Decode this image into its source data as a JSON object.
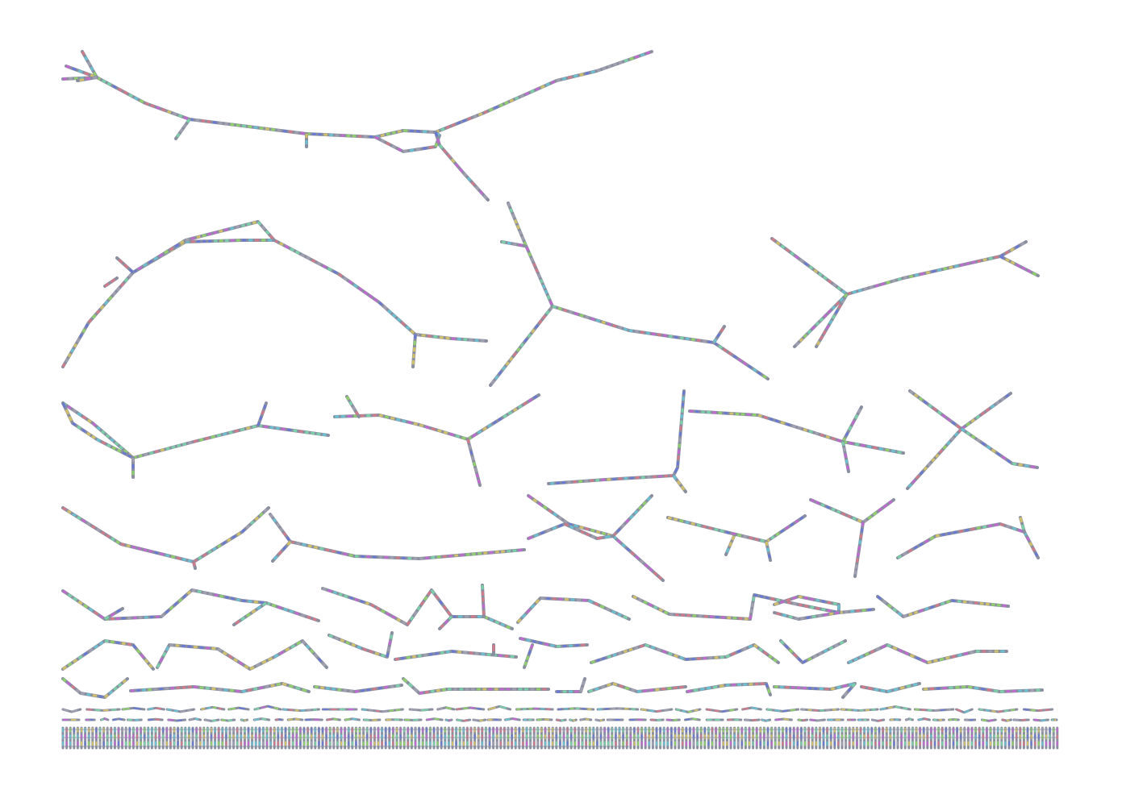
{
  "graph": {
    "palette": [
      "#c06ad0",
      "#6ac0d0",
      "#8fd06a",
      "#d0c06a",
      "#6a7ad0",
      "#d07a8a",
      "#7ad0a8",
      "#a0a0b0"
    ],
    "base_color": "#8a8fa0"
  }
}
